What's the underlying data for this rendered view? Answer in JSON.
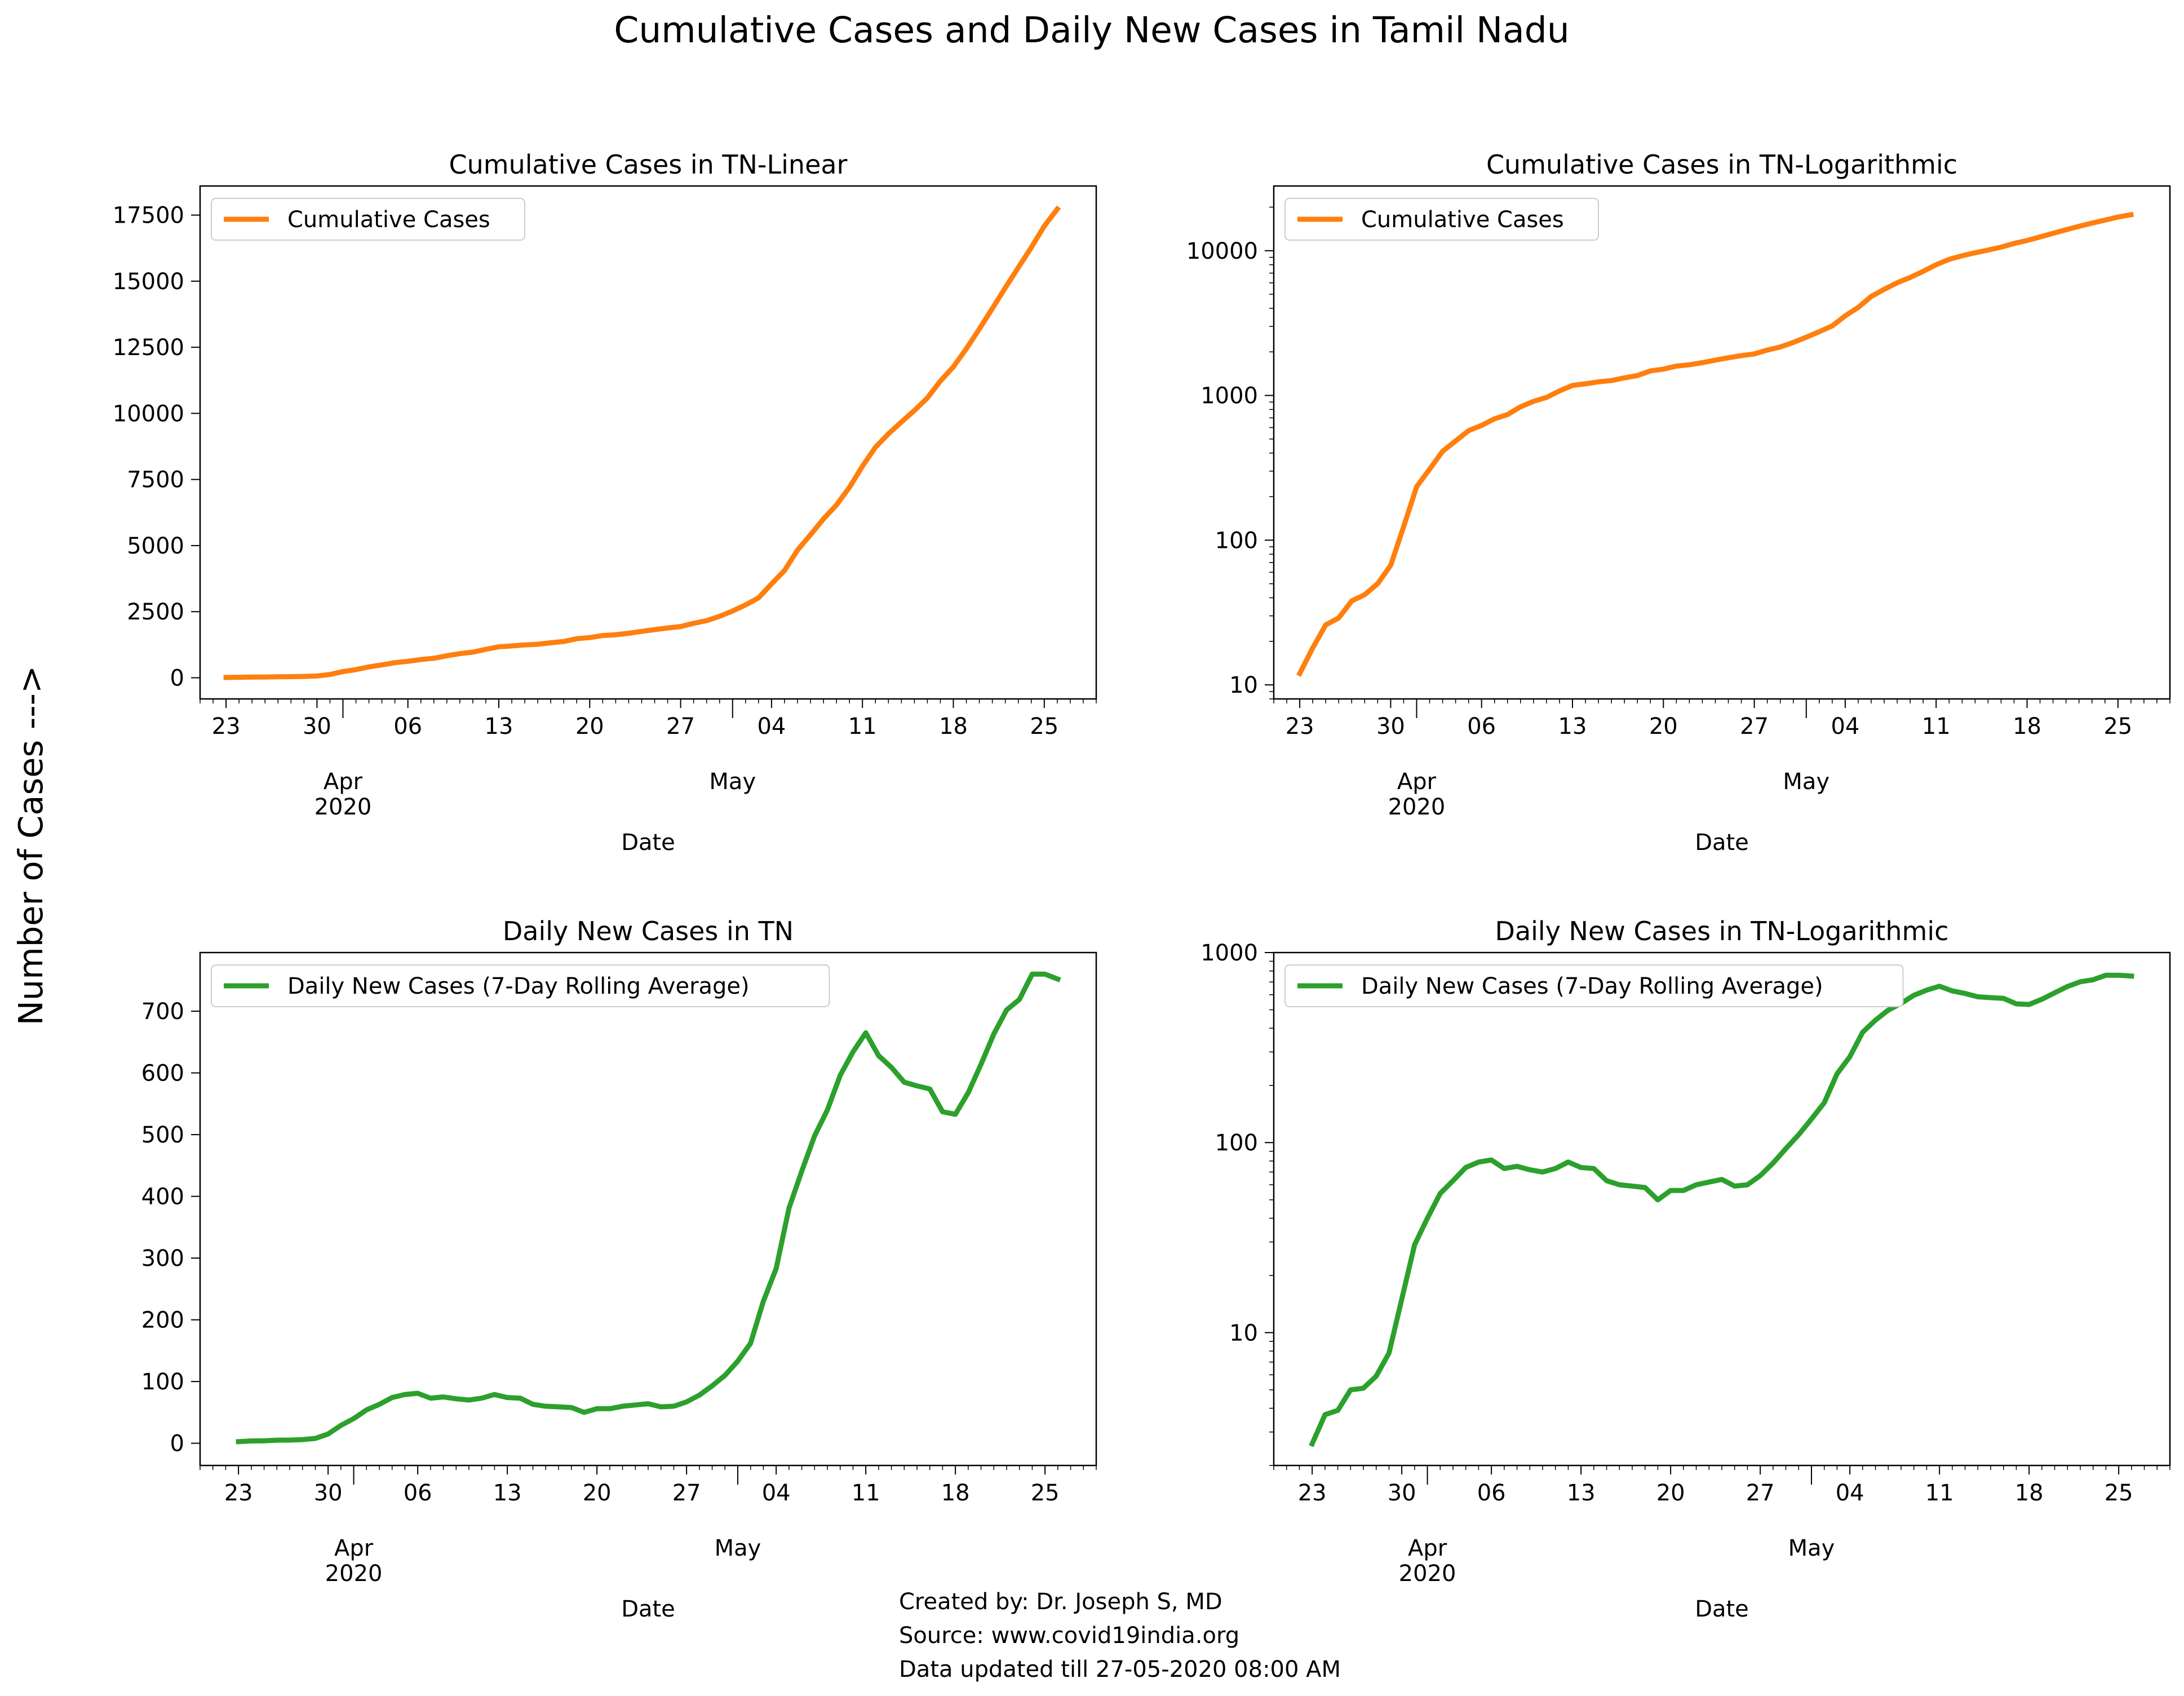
{
  "figure": {
    "suptitle": "Cumulative Cases and Daily New Cases in Tamil Nadu",
    "ylabel": "Number of Cases --->",
    "credits": [
      "Created by: Dr. Joseph S, MD",
      "Source: www.covid19india.org",
      "Data updated till 27-05-2020 08:00 AM"
    ]
  },
  "colors": {
    "orange": "#ff7f0e",
    "green": "#2ca02c"
  },
  "chart_data": [
    {
      "type": "line",
      "title": "Cumulative Cases in TN-Linear",
      "xlabel": "Date",
      "ylabel": "",
      "yscale": "linear",
      "ylim": [
        -800,
        18600
      ],
      "xlim": [
        "2020-03-21",
        "2020-05-29"
      ],
      "yticks": [
        0,
        2500,
        5000,
        7500,
        10000,
        12500,
        15000,
        17500
      ],
      "ytick_labels": [
        "0",
        "2500",
        "5000",
        "7500",
        "10000",
        "12500",
        "15000",
        "17500"
      ],
      "xticks": [
        "2020-03-23",
        "2020-03-30",
        "2020-04-06",
        "2020-04-13",
        "2020-04-20",
        "2020-04-27",
        "2020-05-04",
        "2020-05-11",
        "2020-05-18",
        "2020-05-25"
      ],
      "xtick_labels": [
        "23",
        "30",
        "06",
        "13",
        "20",
        "27",
        "04",
        "11",
        "18",
        "25"
      ],
      "month_labels": [
        {
          "date": "2020-04-01",
          "label": "Apr",
          "year": "2020"
        },
        {
          "date": "2020-05-01",
          "label": "May",
          "year": ""
        }
      ],
      "legend": "upper-left",
      "grid": false,
      "series": [
        {
          "name": "Cumulative Cases",
          "color": "#ff7f0e",
          "x": [
            "2020-03-23",
            "2020-03-24",
            "2020-03-25",
            "2020-03-26",
            "2020-03-27",
            "2020-03-28",
            "2020-03-29",
            "2020-03-30",
            "2020-03-31",
            "2020-04-01",
            "2020-04-02",
            "2020-04-03",
            "2020-04-04",
            "2020-04-05",
            "2020-04-06",
            "2020-04-07",
            "2020-04-08",
            "2020-04-09",
            "2020-04-10",
            "2020-04-11",
            "2020-04-12",
            "2020-04-13",
            "2020-04-14",
            "2020-04-15",
            "2020-04-16",
            "2020-04-17",
            "2020-04-18",
            "2020-04-19",
            "2020-04-20",
            "2020-04-21",
            "2020-04-22",
            "2020-04-23",
            "2020-04-24",
            "2020-04-25",
            "2020-04-26",
            "2020-04-27",
            "2020-04-28",
            "2020-04-29",
            "2020-04-30",
            "2020-05-01",
            "2020-05-02",
            "2020-05-03",
            "2020-05-04",
            "2020-05-05",
            "2020-05-06",
            "2020-05-07",
            "2020-05-08",
            "2020-05-09",
            "2020-05-10",
            "2020-05-11",
            "2020-05-12",
            "2020-05-13",
            "2020-05-14",
            "2020-05-15",
            "2020-05-16",
            "2020-05-17",
            "2020-05-18",
            "2020-05-19",
            "2020-05-20",
            "2020-05-21",
            "2020-05-22",
            "2020-05-23",
            "2020-05-24",
            "2020-05-25",
            "2020-05-26"
          ],
          "values": [
            12,
            18,
            26,
            29,
            38,
            42,
            50,
            67,
            124,
            234,
            309,
            411,
            485,
            571,
            621,
            690,
            738,
            834,
            911,
            969,
            1075,
            1173,
            1204,
            1242,
            1267,
            1323,
            1372,
            1477,
            1520,
            1596,
            1629,
            1683,
            1755,
            1821,
            1885,
            1937,
            2058,
            2162,
            2323,
            2526,
            2757,
            3023,
            3550,
            4058,
            4829,
            5409,
            6009,
            6535,
            7204,
            8002,
            8718,
            9227,
            9674,
            10108,
            10585,
            11224,
            11760,
            12448,
            13191,
            13967,
            14753,
            15512,
            16277,
            17082,
            17728
          ]
        }
      ]
    },
    {
      "type": "line",
      "title": "Cumulative Cases in TN-Logarithmic",
      "xlabel": "Date",
      "ylabel": "",
      "yscale": "log",
      "ylim": [
        8,
        28000
      ],
      "xlim": [
        "2020-03-21",
        "2020-05-29"
      ],
      "yticks": [
        10,
        100,
        1000,
        10000
      ],
      "ytick_labels": [
        "10",
        "100",
        "1000",
        "10000"
      ],
      "xticks": [
        "2020-03-23",
        "2020-03-30",
        "2020-04-06",
        "2020-04-13",
        "2020-04-20",
        "2020-04-27",
        "2020-05-04",
        "2020-05-11",
        "2020-05-18",
        "2020-05-25"
      ],
      "xtick_labels": [
        "23",
        "30",
        "06",
        "13",
        "20",
        "27",
        "04",
        "11",
        "18",
        "25"
      ],
      "month_labels": [
        {
          "date": "2020-04-01",
          "label": "Apr",
          "year": "2020"
        },
        {
          "date": "2020-05-01",
          "label": "May",
          "year": ""
        }
      ],
      "legend": "upper-left",
      "grid": false,
      "series": [
        {
          "name": "Cumulative Cases",
          "color": "#ff7f0e",
          "x": [
            "2020-03-23",
            "2020-03-24",
            "2020-03-25",
            "2020-03-26",
            "2020-03-27",
            "2020-03-28",
            "2020-03-29",
            "2020-03-30",
            "2020-03-31",
            "2020-04-01",
            "2020-04-02",
            "2020-04-03",
            "2020-04-04",
            "2020-04-05",
            "2020-04-06",
            "2020-04-07",
            "2020-04-08",
            "2020-04-09",
            "2020-04-10",
            "2020-04-11",
            "2020-04-12",
            "2020-04-13",
            "2020-04-14",
            "2020-04-15",
            "2020-04-16",
            "2020-04-17",
            "2020-04-18",
            "2020-04-19",
            "2020-04-20",
            "2020-04-21",
            "2020-04-22",
            "2020-04-23",
            "2020-04-24",
            "2020-04-25",
            "2020-04-26",
            "2020-04-27",
            "2020-04-28",
            "2020-04-29",
            "2020-04-30",
            "2020-05-01",
            "2020-05-02",
            "2020-05-03",
            "2020-05-04",
            "2020-05-05",
            "2020-05-06",
            "2020-05-07",
            "2020-05-08",
            "2020-05-09",
            "2020-05-10",
            "2020-05-11",
            "2020-05-12",
            "2020-05-13",
            "2020-05-14",
            "2020-05-15",
            "2020-05-16",
            "2020-05-17",
            "2020-05-18",
            "2020-05-19",
            "2020-05-20",
            "2020-05-21",
            "2020-05-22",
            "2020-05-23",
            "2020-05-24",
            "2020-05-25",
            "2020-05-26"
          ],
          "values": [
            12,
            18,
            26,
            29,
            38,
            42,
            50,
            67,
            124,
            234,
            309,
            411,
            485,
            571,
            621,
            690,
            738,
            834,
            911,
            969,
            1075,
            1173,
            1204,
            1242,
            1267,
            1323,
            1372,
            1477,
            1520,
            1596,
            1629,
            1683,
            1755,
            1821,
            1885,
            1937,
            2058,
            2162,
            2323,
            2526,
            2757,
            3023,
            3550,
            4058,
            4829,
            5409,
            6009,
            6535,
            7204,
            8002,
            8718,
            9227,
            9674,
            10108,
            10585,
            11224,
            11760,
            12448,
            13191,
            13967,
            14753,
            15512,
            16277,
            17082,
            17728
          ]
        }
      ]
    },
    {
      "type": "line",
      "title": "Daily New Cases in TN",
      "xlabel": "Date",
      "ylabel": "",
      "yscale": "linear",
      "ylim": [
        -36,
        795
      ],
      "xlim": [
        "2020-03-20",
        "2020-05-29"
      ],
      "yticks": [
        0,
        100,
        200,
        300,
        400,
        500,
        600,
        700
      ],
      "ytick_labels": [
        "0",
        "100",
        "200",
        "300",
        "400",
        "500",
        "600",
        "700"
      ],
      "xticks": [
        "2020-03-23",
        "2020-03-30",
        "2020-04-06",
        "2020-04-13",
        "2020-04-20",
        "2020-04-27",
        "2020-05-04",
        "2020-05-11",
        "2020-05-18",
        "2020-05-25"
      ],
      "xtick_labels": [
        "23",
        "30",
        "06",
        "13",
        "20",
        "27",
        "04",
        "11",
        "18",
        "25"
      ],
      "month_labels": [
        {
          "date": "2020-04-01",
          "label": "Apr",
          "year": "2020"
        },
        {
          "date": "2020-05-01",
          "label": "May",
          "year": ""
        }
      ],
      "legend": "upper-left",
      "grid": false,
      "series": [
        {
          "name": "Daily New Cases (7-Day Rolling Average)",
          "color": "#2ca02c",
          "x": [
            "2020-03-23",
            "2020-03-24",
            "2020-03-25",
            "2020-03-26",
            "2020-03-27",
            "2020-03-28",
            "2020-03-29",
            "2020-03-30",
            "2020-03-31",
            "2020-04-01",
            "2020-04-02",
            "2020-04-03",
            "2020-04-04",
            "2020-04-05",
            "2020-04-06",
            "2020-04-07",
            "2020-04-08",
            "2020-04-09",
            "2020-04-10",
            "2020-04-11",
            "2020-04-12",
            "2020-04-13",
            "2020-04-14",
            "2020-04-15",
            "2020-04-16",
            "2020-04-17",
            "2020-04-18",
            "2020-04-19",
            "2020-04-20",
            "2020-04-21",
            "2020-04-22",
            "2020-04-23",
            "2020-04-24",
            "2020-04-25",
            "2020-04-26",
            "2020-04-27",
            "2020-04-28",
            "2020-04-29",
            "2020-04-30",
            "2020-05-01",
            "2020-05-02",
            "2020-05-03",
            "2020-05-04",
            "2020-05-05",
            "2020-05-06",
            "2020-05-07",
            "2020-05-08",
            "2020-05-09",
            "2020-05-10",
            "2020-05-11",
            "2020-05-12",
            "2020-05-13",
            "2020-05-14",
            "2020-05-15",
            "2020-05-16",
            "2020-05-17",
            "2020-05-18",
            "2020-05-19",
            "2020-05-20",
            "2020-05-21",
            "2020-05-22",
            "2020-05-23",
            "2020-05-24",
            "2020-05-25",
            "2020-05-26"
          ],
          "values": [
            2.6,
            3.7,
            3.9,
            5.0,
            5.1,
            5.9,
            7.8,
            15,
            29,
            40,
            54,
            63,
            74,
            79,
            81,
            73,
            75,
            72,
            70,
            73,
            79,
            74,
            73,
            63,
            60,
            59,
            58,
            50,
            56,
            56,
            60,
            62,
            64,
            59,
            60,
            67,
            78,
            93,
            110,
            133,
            162,
            230,
            283,
            381,
            441,
            498,
            540,
            596,
            634,
            665,
            628,
            609,
            585,
            579,
            574,
            537,
            533,
            568,
            614,
            663,
            702,
            719,
            760,
            760,
            752
          ]
        }
      ]
    },
    {
      "type": "line",
      "title": "Daily New Cases in TN-Logarithmic",
      "xlabel": "Date",
      "ylabel": "",
      "yscale": "log",
      "ylim": [
        2.0,
        1000
      ],
      "xlim": [
        "2020-03-20",
        "2020-05-29"
      ],
      "yticks": [
        10,
        100,
        1000
      ],
      "ytick_labels": [
        "10",
        "100",
        "1000"
      ],
      "xticks": [
        "2020-03-23",
        "2020-03-30",
        "2020-04-06",
        "2020-04-13",
        "2020-04-20",
        "2020-04-27",
        "2020-05-04",
        "2020-05-11",
        "2020-05-18",
        "2020-05-25"
      ],
      "xtick_labels": [
        "23",
        "30",
        "06",
        "13",
        "20",
        "27",
        "04",
        "11",
        "18",
        "25"
      ],
      "month_labels": [
        {
          "date": "2020-04-01",
          "label": "Apr",
          "year": "2020"
        },
        {
          "date": "2020-05-01",
          "label": "May",
          "year": ""
        }
      ],
      "legend": "upper-left",
      "grid": false,
      "series": [
        {
          "name": "Daily New Cases (7-Day Rolling Average)",
          "color": "#2ca02c",
          "x": [
            "2020-03-23",
            "2020-03-24",
            "2020-03-25",
            "2020-03-26",
            "2020-03-27",
            "2020-03-28",
            "2020-03-29",
            "2020-03-30",
            "2020-03-31",
            "2020-04-01",
            "2020-04-02",
            "2020-04-03",
            "2020-04-04",
            "2020-04-05",
            "2020-04-06",
            "2020-04-07",
            "2020-04-08",
            "2020-04-09",
            "2020-04-10",
            "2020-04-11",
            "2020-04-12",
            "2020-04-13",
            "2020-04-14",
            "2020-04-15",
            "2020-04-16",
            "2020-04-17",
            "2020-04-18",
            "2020-04-19",
            "2020-04-20",
            "2020-04-21",
            "2020-04-22",
            "2020-04-23",
            "2020-04-24",
            "2020-04-25",
            "2020-04-26",
            "2020-04-27",
            "2020-04-28",
            "2020-04-29",
            "2020-04-30",
            "2020-05-01",
            "2020-05-02",
            "2020-05-03",
            "2020-05-04",
            "2020-05-05",
            "2020-05-06",
            "2020-05-07",
            "2020-05-08",
            "2020-05-09",
            "2020-05-10",
            "2020-05-11",
            "2020-05-12",
            "2020-05-13",
            "2020-05-14",
            "2020-05-15",
            "2020-05-16",
            "2020-05-17",
            "2020-05-18",
            "2020-05-19",
            "2020-05-20",
            "2020-05-21",
            "2020-05-22",
            "2020-05-23",
            "2020-05-24",
            "2020-05-25",
            "2020-05-26"
          ],
          "values": [
            2.6,
            3.7,
            3.9,
            5.0,
            5.1,
            5.9,
            7.8,
            15,
            29,
            40,
            54,
            63,
            74,
            79,
            81,
            73,
            75,
            72,
            70,
            73,
            79,
            74,
            73,
            63,
            60,
            59,
            58,
            50,
            56,
            56,
            60,
            62,
            64,
            59,
            60,
            67,
            78,
            93,
            110,
            133,
            162,
            230,
            283,
            381,
            441,
            498,
            540,
            596,
            634,
            665,
            628,
            609,
            585,
            579,
            574,
            537,
            533,
            568,
            614,
            663,
            702,
            719,
            760,
            760,
            752
          ]
        }
      ]
    }
  ]
}
